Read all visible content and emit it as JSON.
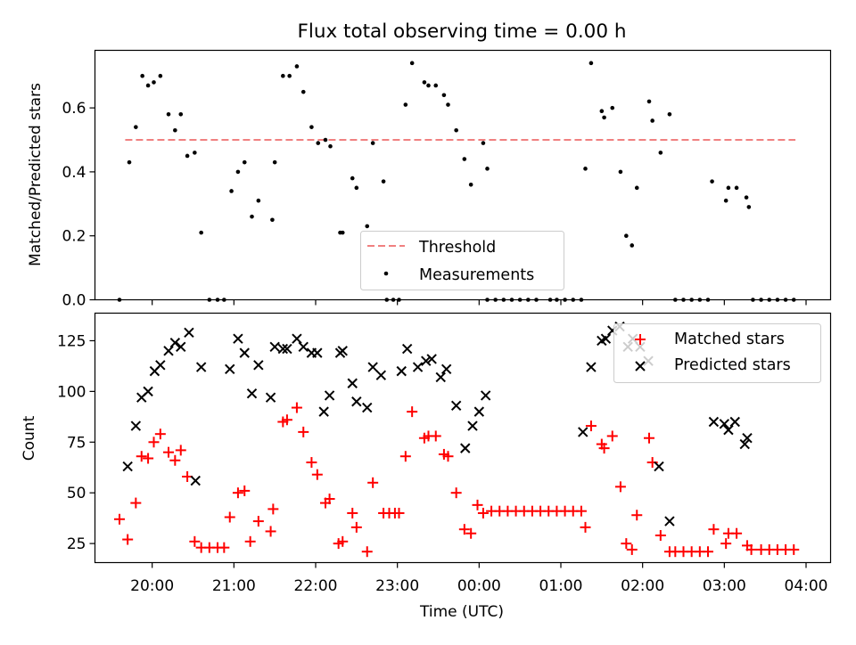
{
  "title": "Flux total observing time = 0.00 h",
  "colors": {
    "threshold": "#f08080",
    "measurement": "#000000",
    "matched": "#ff0000",
    "predicted": "#000000"
  },
  "chart_data": [
    {
      "type": "scatter",
      "ylabel": "Matched/Predicted stars",
      "ylim": [
        0,
        0.78
      ],
      "yticks": [
        0.0,
        0.2,
        0.4,
        0.6
      ],
      "xlim": [
        19.3,
        4.3
      ],
      "legend_position": "lower-center",
      "threshold": {
        "name": "Threshold",
        "value": 0.5,
        "x": [
          19.67,
          3.87
        ]
      },
      "series": [
        {
          "name": "Measurements",
          "points": [
            [
              19.6,
              0.0
            ],
            [
              19.72,
              0.43
            ],
            [
              19.8,
              0.54
            ],
            [
              19.88,
              0.7
            ],
            [
              19.95,
              0.67
            ],
            [
              20.02,
              0.68
            ],
            [
              20.1,
              0.7
            ],
            [
              20.2,
              0.58
            ],
            [
              20.28,
              0.53
            ],
            [
              20.35,
              0.58
            ],
            [
              20.43,
              0.45
            ],
            [
              20.52,
              0.46
            ],
            [
              20.6,
              0.21
            ],
            [
              20.7,
              0.0
            ],
            [
              20.8,
              0.0
            ],
            [
              20.88,
              0.0
            ],
            [
              20.97,
              0.34
            ],
            [
              21.05,
              0.4
            ],
            [
              21.13,
              0.43
            ],
            [
              21.22,
              0.26
            ],
            [
              21.3,
              0.31
            ],
            [
              21.47,
              0.25
            ],
            [
              21.5,
              0.43
            ],
            [
              21.6,
              0.7
            ],
            [
              21.68,
              0.7
            ],
            [
              21.77,
              0.73
            ],
            [
              21.85,
              0.65
            ],
            [
              21.95,
              0.54
            ],
            [
              22.03,
              0.49
            ],
            [
              22.12,
              0.5
            ],
            [
              22.18,
              0.48
            ],
            [
              22.3,
              0.21
            ],
            [
              22.33,
              0.21
            ],
            [
              22.45,
              0.38
            ],
            [
              22.5,
              0.35
            ],
            [
              22.63,
              0.23
            ],
            [
              22.7,
              0.49
            ],
            [
              22.83,
              0.37
            ],
            [
              22.87,
              0.0
            ],
            [
              22.95,
              0.0
            ],
            [
              23.02,
              0.0
            ],
            [
              23.1,
              0.61
            ],
            [
              23.18,
              0.74
            ],
            [
              23.33,
              0.68
            ],
            [
              23.38,
              0.67
            ],
            [
              23.47,
              0.67
            ],
            [
              23.57,
              0.64
            ],
            [
              23.62,
              0.61
            ],
            [
              23.72,
              0.53
            ],
            [
              23.82,
              0.44
            ],
            [
              23.9,
              0.36
            ],
            [
              24.05,
              0.49
            ],
            [
              24.1,
              0.41
            ],
            [
              24.1,
              0.0
            ],
            [
              24.2,
              0.0
            ],
            [
              24.3,
              0.0
            ],
            [
              24.4,
              0.0
            ],
            [
              24.5,
              0.0
            ],
            [
              24.6,
              0.0
            ],
            [
              24.7,
              0.0
            ],
            [
              24.87,
              0.0
            ],
            [
              24.95,
              0.0
            ],
            [
              25.05,
              0.0
            ],
            [
              25.15,
              0.0
            ],
            [
              25.25,
              0.0
            ],
            [
              25.3,
              0.41
            ],
            [
              25.37,
              0.74
            ],
            [
              25.5,
              0.59
            ],
            [
              25.53,
              0.57
            ],
            [
              25.63,
              0.6
            ],
            [
              25.73,
              0.4
            ],
            [
              25.8,
              0.2
            ],
            [
              25.87,
              0.17
            ],
            [
              25.93,
              0.35
            ],
            [
              26.08,
              0.62
            ],
            [
              26.12,
              0.56
            ],
            [
              26.22,
              0.46
            ],
            [
              26.33,
              0.58
            ],
            [
              26.4,
              0.0
            ],
            [
              26.5,
              0.0
            ],
            [
              26.6,
              0.0
            ],
            [
              26.7,
              0.0
            ],
            [
              26.8,
              0.0
            ],
            [
              26.85,
              0.37
            ],
            [
              27.02,
              0.31
            ],
            [
              27.05,
              0.35
            ],
            [
              27.15,
              0.35
            ],
            [
              27.27,
              0.32
            ],
            [
              27.3,
              0.29
            ],
            [
              27.35,
              0.0
            ],
            [
              27.45,
              0.0
            ],
            [
              27.55,
              0.0
            ],
            [
              27.65,
              0.0
            ],
            [
              27.75,
              0.0
            ],
            [
              27.85,
              0.0
            ]
          ]
        }
      ]
    },
    {
      "type": "scatter",
      "xlabel": "Time (UTC)",
      "ylabel": "Count",
      "ylim": [
        15.6,
        138.6
      ],
      "yticks": [
        25,
        50,
        75,
        100,
        125
      ],
      "xlim": [
        19.3,
        4.3
      ],
      "xticks": [
        "20:00",
        "21:00",
        "22:00",
        "23:00",
        "00:00",
        "01:00",
        "02:00",
        "03:00",
        "04:00"
      ],
      "legend_position": "upper-right",
      "series": [
        {
          "name": "Matched stars",
          "marker": "+",
          "points": [
            [
              19.6,
              37
            ],
            [
              19.7,
              27
            ],
            [
              19.8,
              45
            ],
            [
              19.87,
              68
            ],
            [
              19.95,
              67
            ],
            [
              20.02,
              75
            ],
            [
              20.1,
              79
            ],
            [
              20.2,
              70
            ],
            [
              20.28,
              66
            ],
            [
              20.35,
              71
            ],
            [
              20.43,
              58
            ],
            [
              20.52,
              26
            ],
            [
              20.6,
              23
            ],
            [
              20.7,
              23
            ],
            [
              20.8,
              23
            ],
            [
              20.88,
              23
            ],
            [
              20.95,
              38
            ],
            [
              21.05,
              50
            ],
            [
              21.13,
              51
            ],
            [
              21.2,
              26
            ],
            [
              21.3,
              36
            ],
            [
              21.45,
              31
            ],
            [
              21.48,
              42
            ],
            [
              21.6,
              85
            ],
            [
              21.65,
              86
            ],
            [
              21.77,
              92
            ],
            [
              21.85,
              80
            ],
            [
              21.95,
              65
            ],
            [
              22.02,
              59
            ],
            [
              22.12,
              45
            ],
            [
              22.17,
              47
            ],
            [
              22.28,
              25
            ],
            [
              22.33,
              26
            ],
            [
              22.45,
              40
            ],
            [
              22.5,
              33
            ],
            [
              22.63,
              21
            ],
            [
              22.7,
              55
            ],
            [
              22.83,
              40
            ],
            [
              22.9,
              40
            ],
            [
              22.97,
              40
            ],
            [
              23.02,
              40
            ],
            [
              23.1,
              68
            ],
            [
              23.18,
              90
            ],
            [
              23.33,
              77
            ],
            [
              23.38,
              78
            ],
            [
              23.47,
              78
            ],
            [
              23.57,
              69
            ],
            [
              23.62,
              68
            ],
            [
              23.72,
              50
            ],
            [
              23.82,
              32
            ],
            [
              23.9,
              30
            ],
            [
              23.98,
              44
            ],
            [
              24.05,
              40
            ],
            [
              24.15,
              41
            ],
            [
              24.25,
              41
            ],
            [
              24.35,
              41
            ],
            [
              24.45,
              41
            ],
            [
              24.55,
              41
            ],
            [
              24.65,
              41
            ],
            [
              24.75,
              41
            ],
            [
              24.85,
              41
            ],
            [
              24.95,
              41
            ],
            [
              25.05,
              41
            ],
            [
              25.15,
              41
            ],
            [
              25.25,
              41
            ],
            [
              25.3,
              33
            ],
            [
              25.37,
              83
            ],
            [
              25.5,
              74
            ],
            [
              25.53,
              72
            ],
            [
              25.63,
              78
            ],
            [
              25.73,
              53
            ],
            [
              25.8,
              25
            ],
            [
              25.87,
              22
            ],
            [
              25.93,
              39
            ],
            [
              26.08,
              77
            ],
            [
              26.12,
              65
            ],
            [
              26.22,
              29
            ],
            [
              26.33,
              21
            ],
            [
              26.4,
              21
            ],
            [
              26.5,
              21
            ],
            [
              26.6,
              21
            ],
            [
              26.7,
              21
            ],
            [
              26.8,
              21
            ],
            [
              26.87,
              32
            ],
            [
              27.02,
              25
            ],
            [
              27.05,
              30
            ],
            [
              27.15,
              30
            ],
            [
              27.28,
              24
            ],
            [
              27.33,
              22
            ],
            [
              27.45,
              22
            ],
            [
              27.55,
              22
            ],
            [
              27.65,
              22
            ],
            [
              27.75,
              22
            ],
            [
              27.85,
              22
            ]
          ]
        },
        {
          "name": "Predicted stars",
          "marker": "x",
          "points": [
            [
              19.7,
              63
            ],
            [
              19.8,
              83
            ],
            [
              19.87,
              97
            ],
            [
              19.95,
              100
            ],
            [
              20.03,
              110
            ],
            [
              20.1,
              113
            ],
            [
              20.2,
              120
            ],
            [
              20.28,
              124
            ],
            [
              20.35,
              122
            ],
            [
              20.45,
              129
            ],
            [
              20.53,
              56
            ],
            [
              20.6,
              112
            ],
            [
              20.95,
              111
            ],
            [
              21.05,
              126
            ],
            [
              21.13,
              119
            ],
            [
              21.22,
              99
            ],
            [
              21.3,
              113
            ],
            [
              21.45,
              97
            ],
            [
              21.5,
              122
            ],
            [
              21.6,
              121
            ],
            [
              21.65,
              121
            ],
            [
              21.77,
              126
            ],
            [
              21.85,
              122
            ],
            [
              21.95,
              119
            ],
            [
              22.02,
              119
            ],
            [
              22.1,
              90
            ],
            [
              22.17,
              98
            ],
            [
              22.3,
              119
            ],
            [
              22.33,
              120
            ],
            [
              22.45,
              104
            ],
            [
              22.5,
              95
            ],
            [
              22.63,
              92
            ],
            [
              22.7,
              112
            ],
            [
              22.8,
              108
            ],
            [
              23.05,
              110
            ],
            [
              23.12,
              121
            ],
            [
              23.25,
              112
            ],
            [
              23.35,
              115
            ],
            [
              23.42,
              116
            ],
            [
              23.53,
              107
            ],
            [
              23.6,
              111
            ],
            [
              23.72,
              93
            ],
            [
              23.83,
              72
            ],
            [
              23.92,
              83
            ],
            [
              24.0,
              90
            ],
            [
              24.08,
              98
            ],
            [
              25.27,
              80
            ],
            [
              25.37,
              112
            ],
            [
              25.5,
              125
            ],
            [
              25.55,
              126
            ],
            [
              25.63,
              130
            ],
            [
              25.72,
              132
            ],
            [
              25.82,
              122
            ],
            [
              25.88,
              126
            ],
            [
              25.97,
              122
            ],
            [
              26.07,
              115
            ],
            [
              26.2,
              63
            ],
            [
              26.33,
              36
            ],
            [
              26.87,
              85
            ],
            [
              27.0,
              84
            ],
            [
              27.05,
              81
            ],
            [
              27.13,
              85
            ],
            [
              27.25,
              74
            ],
            [
              27.28,
              77
            ]
          ]
        }
      ]
    }
  ]
}
